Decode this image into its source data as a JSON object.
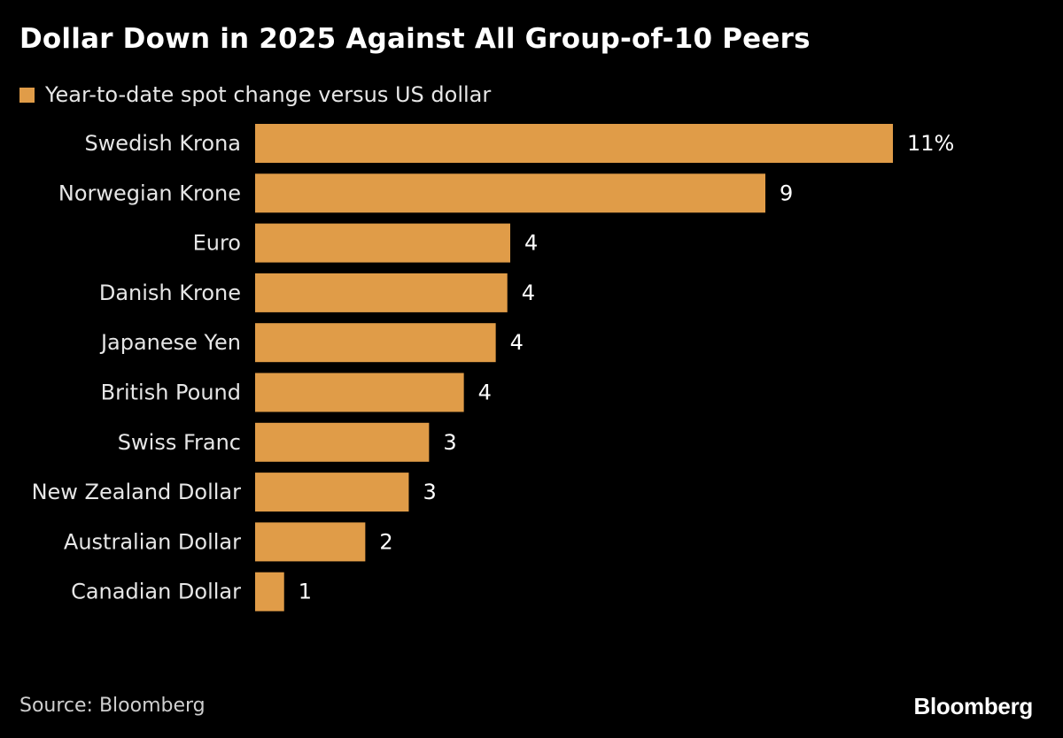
{
  "colors": {
    "background": "#000000",
    "bar": "#e09c48",
    "text": "#ffffff",
    "muted_text": "#e6e6e6"
  },
  "chart_data": {
    "type": "bar",
    "orientation": "horizontal",
    "title": "Dollar Down in 2025 Against All Group-of-10 Peers",
    "series": [
      {
        "name": "Year-to-date spot change versus US dollar",
        "values": [
          11.0,
          8.8,
          4.4,
          4.35,
          4.15,
          3.6,
          3.0,
          2.65,
          1.9,
          0.5
        ]
      }
    ],
    "categories": [
      "Swedish Krona",
      "Norwegian Krone",
      "Euro",
      "Danish Krone",
      "Japanese Yen",
      "British Pound",
      "Swiss Franc",
      "New Zealand Dollar",
      "Australian Dollar",
      "Canadian Dollar"
    ],
    "data_labels": [
      "11%",
      "9",
      "4",
      "4",
      "4",
      "4",
      "3",
      "3",
      "2",
      "1"
    ],
    "xlim": [
      0,
      11
    ],
    "grid": false,
    "xlabel": "",
    "ylabel": ""
  },
  "footer": {
    "source": "Source: Bloomberg",
    "brand": "Bloomberg"
  }
}
